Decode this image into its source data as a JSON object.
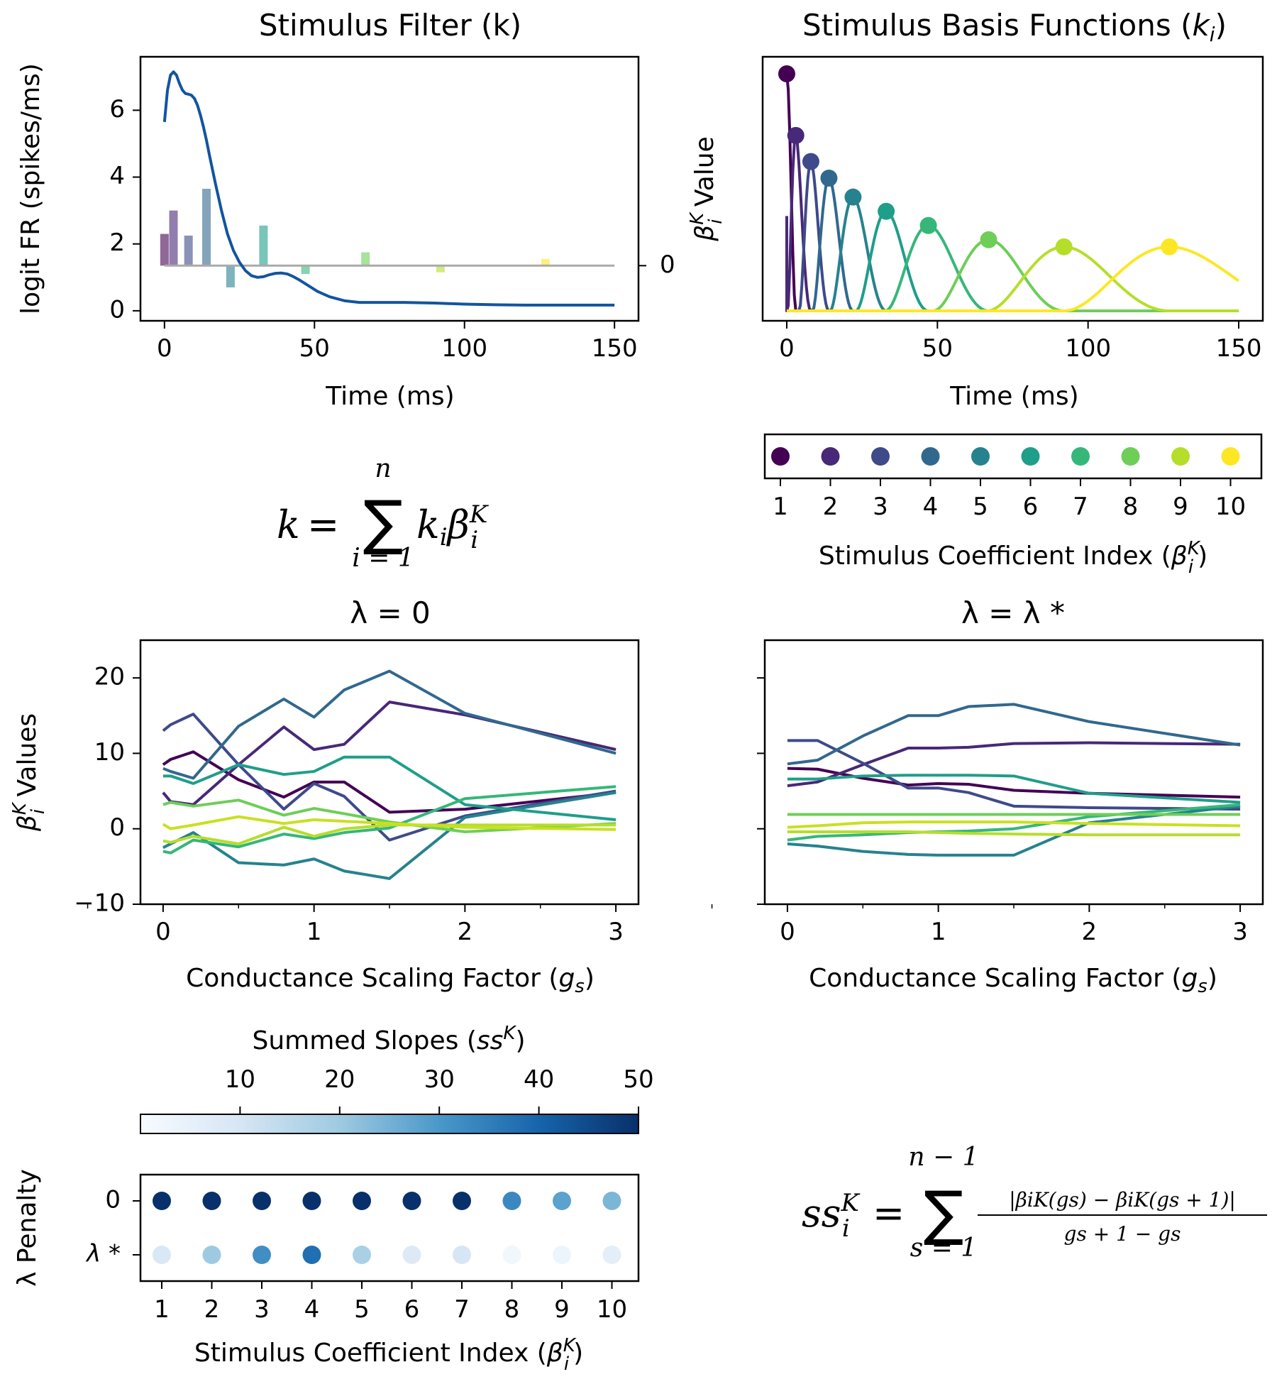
{
  "chart_data": [
    {
      "id": "filter",
      "type": "line",
      "title": "Stimulus Filter (k)",
      "xlabel": "Time (ms)",
      "ylabel": "logit FR (spikes/ms)",
      "right_tick": "0",
      "xlim": [
        -8,
        158
      ],
      "ylim": [
        -0.3,
        7.6
      ],
      "xticks": [
        0,
        50,
        100,
        150
      ],
      "yticks": [
        0,
        2,
        4,
        6
      ],
      "line_color": "#1254a0",
      "baseline_y": 1.35,
      "line": {
        "x": [
          0,
          1,
          2,
          3,
          4,
          5,
          6,
          7,
          8,
          9,
          10,
          11,
          12,
          13,
          14,
          15,
          17,
          19,
          21,
          23,
          25,
          27,
          29,
          31,
          33,
          35,
          37,
          39,
          41,
          43,
          45,
          48,
          51,
          55,
          60,
          65,
          70,
          80,
          90,
          100,
          110,
          120,
          130,
          140,
          150
        ],
        "y": [
          5.65,
          6.6,
          7.05,
          7.15,
          7.05,
          6.8,
          6.6,
          6.5,
          6.48,
          6.45,
          6.35,
          6.15,
          5.85,
          5.5,
          5.1,
          4.65,
          3.8,
          3.0,
          2.3,
          1.8,
          1.45,
          1.2,
          1.05,
          1.0,
          1.02,
          1.08,
          1.12,
          1.13,
          1.1,
          1.02,
          0.92,
          0.75,
          0.58,
          0.42,
          0.3,
          0.25,
          0.25,
          0.25,
          0.23,
          0.2,
          0.18,
          0.17,
          0.17,
          0.17,
          0.17
        ]
      },
      "bars": {
        "x": [
          0,
          3,
          8,
          14,
          22,
          33,
          47,
          67,
          92,
          127
        ],
        "top": [
          2.3,
          3.0,
          2.25,
          3.65,
          0.7,
          2.55,
          1.1,
          1.75,
          1.15,
          1.55
        ],
        "colors": [
          "#440154",
          "#482878",
          "#3e4a89",
          "#31688e",
          "#26828e",
          "#1f9e89",
          "#35b779",
          "#6ece58",
          "#b5de2b",
          "#fde725"
        ]
      }
    },
    {
      "id": "basis",
      "type": "line",
      "title": "Stimulus Basis Functions (ki)",
      "xlabel": "Time (ms)",
      "ylabel": "βiK Value",
      "xlim": [
        -8,
        158
      ],
      "xticks": [
        0,
        50,
        100,
        150
      ],
      "peaks_t": [
        0,
        3,
        8,
        14,
        22,
        33,
        47,
        67,
        92,
        127
      ],
      "peaks_h": [
        1.0,
        0.74,
        0.63,
        0.56,
        0.48,
        0.42,
        0.36,
        0.3,
        0.27,
        0.27
      ],
      "colors": [
        "#440154",
        "#482878",
        "#3e4a89",
        "#31688e",
        "#26828e",
        "#1f9e89",
        "#35b779",
        "#6ece58",
        "#b5de2b",
        "#fde725"
      ],
      "first_start": 0.4
    },
    {
      "id": "coef-legend",
      "type": "scatter",
      "xlabel": "Stimulus Coefficient Index (βiK)",
      "ticks": [
        "1",
        "2",
        "3",
        "4",
        "5",
        "6",
        "7",
        "8",
        "9",
        "10"
      ],
      "colors": [
        "#440154",
        "#482878",
        "#3e4a89",
        "#31688e",
        "#26828e",
        "#1f9e89",
        "#35b779",
        "#6ece58",
        "#b5de2b",
        "#fde725"
      ]
    },
    {
      "id": "lambda0",
      "type": "line",
      "title": "λ = 0",
      "xlabel": "Conductance Scaling Factor (gs)",
      "ylabel": "βiK Values",
      "xlim": [
        -0.15,
        3.15
      ],
      "ylim": [
        -10,
        25
      ],
      "xticks": [
        0,
        1,
        2,
        3
      ],
      "yticks": [
        -10,
        0,
        10,
        20
      ],
      "x": [
        0,
        0.05,
        0.2,
        0.5,
        0.8,
        1.0,
        1.2,
        1.5,
        2.0,
        3.0
      ],
      "series": [
        {
          "color": "#440154",
          "values": [
            8.5,
            9.2,
            10.2,
            6.5,
            4.2,
            6.2,
            6.2,
            2.2,
            2.6,
            4.8
          ]
        },
        {
          "color": "#482878",
          "values": [
            4.8,
            3.6,
            3.2,
            8.5,
            13.5,
            10.5,
            11.2,
            16.8,
            15.1,
            10.5
          ]
        },
        {
          "color": "#3e4a89",
          "values": [
            13.0,
            13.8,
            15.2,
            8.5,
            2.6,
            6.0,
            4.3,
            -1.5,
            1.7,
            5.0
          ]
        },
        {
          "color": "#31688e",
          "values": [
            8.0,
            7.6,
            6.7,
            13.6,
            17.2,
            14.8,
            18.4,
            20.9,
            15.3,
            10.0
          ]
        },
        {
          "color": "#26828e",
          "values": [
            -2.5,
            -2.0,
            -0.5,
            -4.5,
            -4.8,
            -4.0,
            -5.6,
            -6.6,
            1.5,
            4.8
          ]
        },
        {
          "color": "#1f9e89",
          "values": [
            7.0,
            7.0,
            6.0,
            8.5,
            7.2,
            7.6,
            9.5,
            9.5,
            3.2,
            1.2
          ]
        },
        {
          "color": "#35b779",
          "values": [
            -3.0,
            -3.2,
            -1.5,
            -2.4,
            -0.7,
            -1.3,
            -0.5,
            0.1,
            4.0,
            5.6
          ]
        },
        {
          "color": "#6ece58",
          "values": [
            3.2,
            3.5,
            3.0,
            3.8,
            1.8,
            2.7,
            2.0,
            0.9,
            -0.4,
            0.7
          ]
        },
        {
          "color": "#b5de2b",
          "values": [
            -1.6,
            -1.8,
            -1.0,
            -2.0,
            0.2,
            -1.0,
            0.0,
            0.5,
            0.5,
            0.5
          ]
        },
        {
          "color": "#c9e020",
          "values": [
            0.6,
            0.0,
            0.5,
            1.6,
            0.7,
            1.2,
            1.0,
            0.7,
            0.2,
            -0.1
          ]
        }
      ]
    },
    {
      "id": "lambdastar",
      "type": "line",
      "title": "λ = λ *",
      "xlabel": "Conductance Scaling Factor (gs)",
      "xlim": [
        -0.15,
        3.15
      ],
      "ylim": [
        -10,
        25
      ],
      "xticks": [
        0,
        1,
        2,
        3
      ],
      "x": [
        0,
        0.2,
        0.5,
        0.8,
        1.0,
        1.2,
        1.5,
        2.0,
        3.0
      ],
      "series": [
        {
          "color": "#440154",
          "values": [
            8.0,
            7.9,
            6.7,
            5.8,
            6.0,
            5.9,
            5.1,
            4.7,
            4.2
          ]
        },
        {
          "color": "#482878",
          "values": [
            5.7,
            6.2,
            8.5,
            10.7,
            10.7,
            10.8,
            11.3,
            11.4,
            11.2
          ]
        },
        {
          "color": "#3e4a89",
          "values": [
            11.7,
            11.7,
            8.7,
            5.4,
            5.4,
            4.8,
            3.0,
            2.8,
            2.6
          ]
        },
        {
          "color": "#31688e",
          "values": [
            8.6,
            9.1,
            12.3,
            15.0,
            15.0,
            16.2,
            16.5,
            14.2,
            11.1
          ]
        },
        {
          "color": "#26828e",
          "values": [
            -2.0,
            -2.3,
            -3.0,
            -3.4,
            -3.5,
            -3.5,
            -3.5,
            0.8,
            3.0
          ]
        },
        {
          "color": "#1f9e89",
          "values": [
            6.6,
            6.6,
            7.0,
            7.1,
            7.1,
            7.1,
            7.0,
            4.7,
            3.5
          ]
        },
        {
          "color": "#35b779",
          "values": [
            -1.5,
            -1.0,
            -0.8,
            -0.5,
            -0.4,
            -0.3,
            0.0,
            1.6,
            3.2
          ]
        },
        {
          "color": "#6ece58",
          "values": [
            1.9,
            1.9,
            1.9,
            1.9,
            1.9,
            1.9,
            1.9,
            1.9,
            1.9
          ]
        },
        {
          "color": "#b5de2b",
          "values": [
            -0.4,
            -0.4,
            -0.4,
            -0.4,
            -0.5,
            -0.6,
            -0.7,
            -0.8,
            -0.8
          ]
        },
        {
          "color": "#c9e020",
          "values": [
            0.2,
            0.4,
            0.8,
            0.9,
            0.9,
            0.9,
            0.9,
            0.7,
            0.4
          ]
        }
      ]
    },
    {
      "id": "penalty",
      "type": "heatmap",
      "colorbar_label": "Summed Slopes (ssK)",
      "colorbar_range": [
        0,
        50
      ],
      "colorbar_ticks": [
        10,
        20,
        30,
        40,
        50
      ],
      "ylabel": "λ Penalty",
      "xlabel": "Stimulus Coefficient Index (βiK)",
      "rows": [
        "0",
        "λ *"
      ],
      "columns": [
        "1",
        "2",
        "3",
        "4",
        "5",
        "6",
        "7",
        "8",
        "9",
        "10"
      ],
      "values": [
        [
          50,
          50,
          50,
          50,
          50,
          50,
          50,
          33,
          28,
          24
        ],
        [
          9,
          20,
          32,
          38,
          18,
          8,
          10,
          2,
          3,
          6
        ]
      ]
    }
  ],
  "equations": {
    "k_lhs": "k",
    "k_eq": "=",
    "k_sum": "∑",
    "k_upper": "n",
    "k_lower": "i = 1",
    "k_term": "kiβiK",
    "ss_lhs": "ssiK",
    "ss_eq": "=",
    "ss_sum": "∑",
    "ss_upper": "n − 1",
    "ss_lower": "s = 1",
    "ss_num": "|βiK(gs) − βiK(gs + 1)|",
    "ss_den": "gs + 1 − gs"
  }
}
